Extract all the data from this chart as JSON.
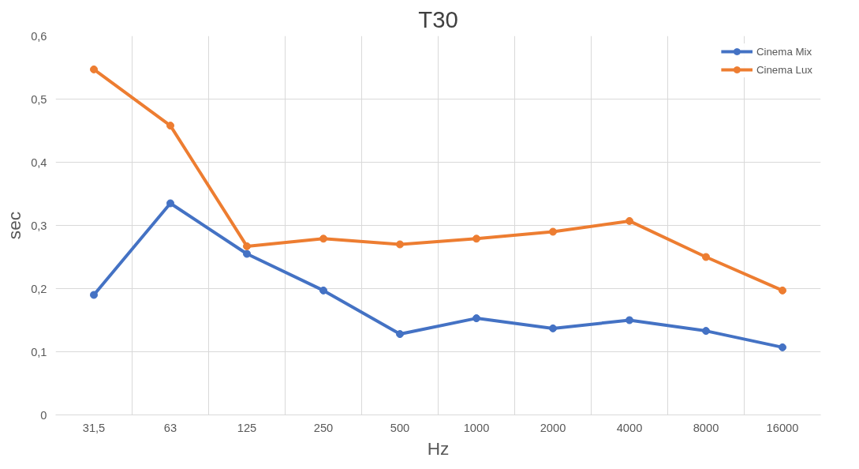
{
  "chart_data": {
    "type": "line",
    "title": "T30",
    "xlabel": "Hz",
    "ylabel": "sec",
    "categories": [
      "31,5",
      "63",
      "125",
      "250",
      "500",
      "1000",
      "2000",
      "4000",
      "8000",
      "16000"
    ],
    "series": [
      {
        "name": "Cinema Mix",
        "color": "#4472c4",
        "values": [
          0.19,
          0.335,
          0.255,
          0.197,
          0.128,
          0.153,
          0.137,
          0.15,
          0.133,
          0.107
        ]
      },
      {
        "name": "Cinema Lux",
        "color": "#ed7d31",
        "values": [
          0.547,
          0.458,
          0.267,
          0.279,
          0.27,
          0.279,
          0.29,
          0.307,
          0.25,
          0.197
        ]
      }
    ],
    "ylim": [
      0,
      0.6
    ],
    "yticks": [
      0,
      {
        "value": 0.1,
        "label": "0,1"
      },
      {
        "value": 0.2,
        "label": "0,2"
      },
      {
        "value": 0.3,
        "label": "0,3"
      },
      {
        "value": 0.4,
        "label": "0,4"
      },
      {
        "value": 0.5,
        "label": "0,5"
      },
      {
        "value": 0.6,
        "label": "0,6"
      }
    ],
    "grid": true,
    "legend": "top right",
    "marker": "circle",
    "line_style": "solid"
  }
}
